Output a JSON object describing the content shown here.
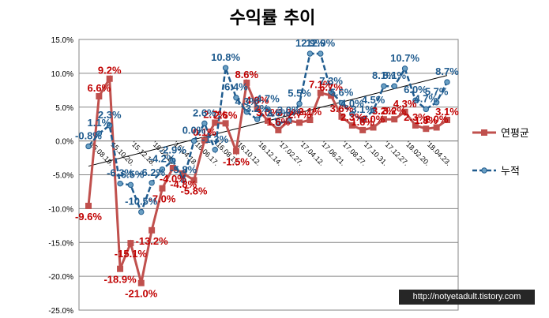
{
  "chart_data": {
    "type": "line",
    "title": "수익률 추이",
    "ylim": [
      -0.25,
      0.15
    ],
    "yticks": [
      "15.0%",
      "10.0%",
      "5.0%",
      "0.0%",
      "-5.0%",
      "-10.0%",
      "-15.0%",
      "-20.0%",
      "-25.0%"
    ],
    "x_tick_labels": [
      "'15.08.19.",
      "'15.10.20.",
      "'15.12.18.",
      "'16.02.18.",
      "'16.04.18.",
      "'16.06.17.",
      "'16.08.17.",
      "'16.10.12.",
      "'16.12.14.",
      "'17.02.27.",
      "'17.04.12.",
      "'17.06.21.",
      "'17.08.27.",
      "'17.10.31.",
      "'17.12.27.",
      "'18.02.20.",
      "'18.04.23."
    ],
    "series": [
      {
        "name": "연평균",
        "color": "#C0504D",
        "marker": "square",
        "values": [
          -0.096,
          0.066,
          0.092,
          -0.189,
          -0.151,
          -0.21,
          -0.132,
          -0.07,
          -0.04,
          -0.048,
          -0.058,
          0.001,
          0.027,
          0.026,
          -0.015,
          0.086,
          0.048,
          0.03,
          0.016,
          0.03,
          0.027,
          0.031,
          0.071,
          0.067,
          0.036,
          0.023,
          0.016,
          0.02,
          0.032,
          0.032,
          0.043,
          0.023,
          0.018,
          0.02,
          0.031
        ],
        "labels": [
          "-9.6%",
          "6.6%",
          "9.2%",
          "-18.9%",
          "-15.1%",
          "-21.0%",
          "-13.2%",
          "-7.0%",
          "-4.0%",
          "-4.8%",
          "-5.8%",
          "0.1%",
          "2.7%",
          "2.6%",
          "-1.5%",
          "8.6%",
          "4.8%",
          "3.0%",
          "1.6%",
          "3.0%",
          "2.7%",
          "3.1%",
          "7.1%",
          "6.7%",
          "3.6%",
          "2.3%",
          "1.6%",
          "2.0%",
          "3.2%",
          "3.2%",
          "4.3%",
          "2.3%",
          "1.8%",
          "2.0%",
          "3.1%"
        ]
      },
      {
        "name": "누적",
        "color": "#1F5B8E",
        "marker": "circle",
        "values": [
          -0.008,
          0.011,
          0.023,
          -0.063,
          -0.065,
          -0.105,
          -0.062,
          -0.042,
          -0.029,
          -0.058,
          0.0,
          0.026,
          -0.013,
          0.108,
          0.064,
          0.043,
          0.032,
          0.047,
          0.026,
          0.03,
          0.055,
          0.129,
          0.129,
          0.073,
          0.056,
          0.04,
          0.031,
          0.045,
          0.081,
          0.081,
          0.107,
          0.06,
          0.047,
          0.057,
          0.087
        ],
        "labels": [
          "-0.8%",
          "1.1%",
          "2.3%",
          "-6.3%",
          "-6.5%",
          "-10.5%",
          "-6.2%",
          "-4.2%",
          "-2.9%",
          "-5.8%",
          "0.0%",
          "2.6%",
          "-1.3%",
          "10.8%",
          "6.4%",
          "4.3%",
          "3.2%",
          "4.7%",
          "2.6%",
          "3.0%",
          "5.5%",
          "12.9%",
          "12.9%",
          "7.3%",
          "5.6%",
          "4.0%",
          "3.1%",
          "4.5%",
          "8.1%",
          "8.1%",
          "10.7%",
          "6.0%",
          "4.7%",
          "5.7%",
          "8.7%"
        ]
      }
    ],
    "trendline": true,
    "legend_position": "right",
    "grid": true
  },
  "watermark": "http://notyetadult.tistory.com"
}
